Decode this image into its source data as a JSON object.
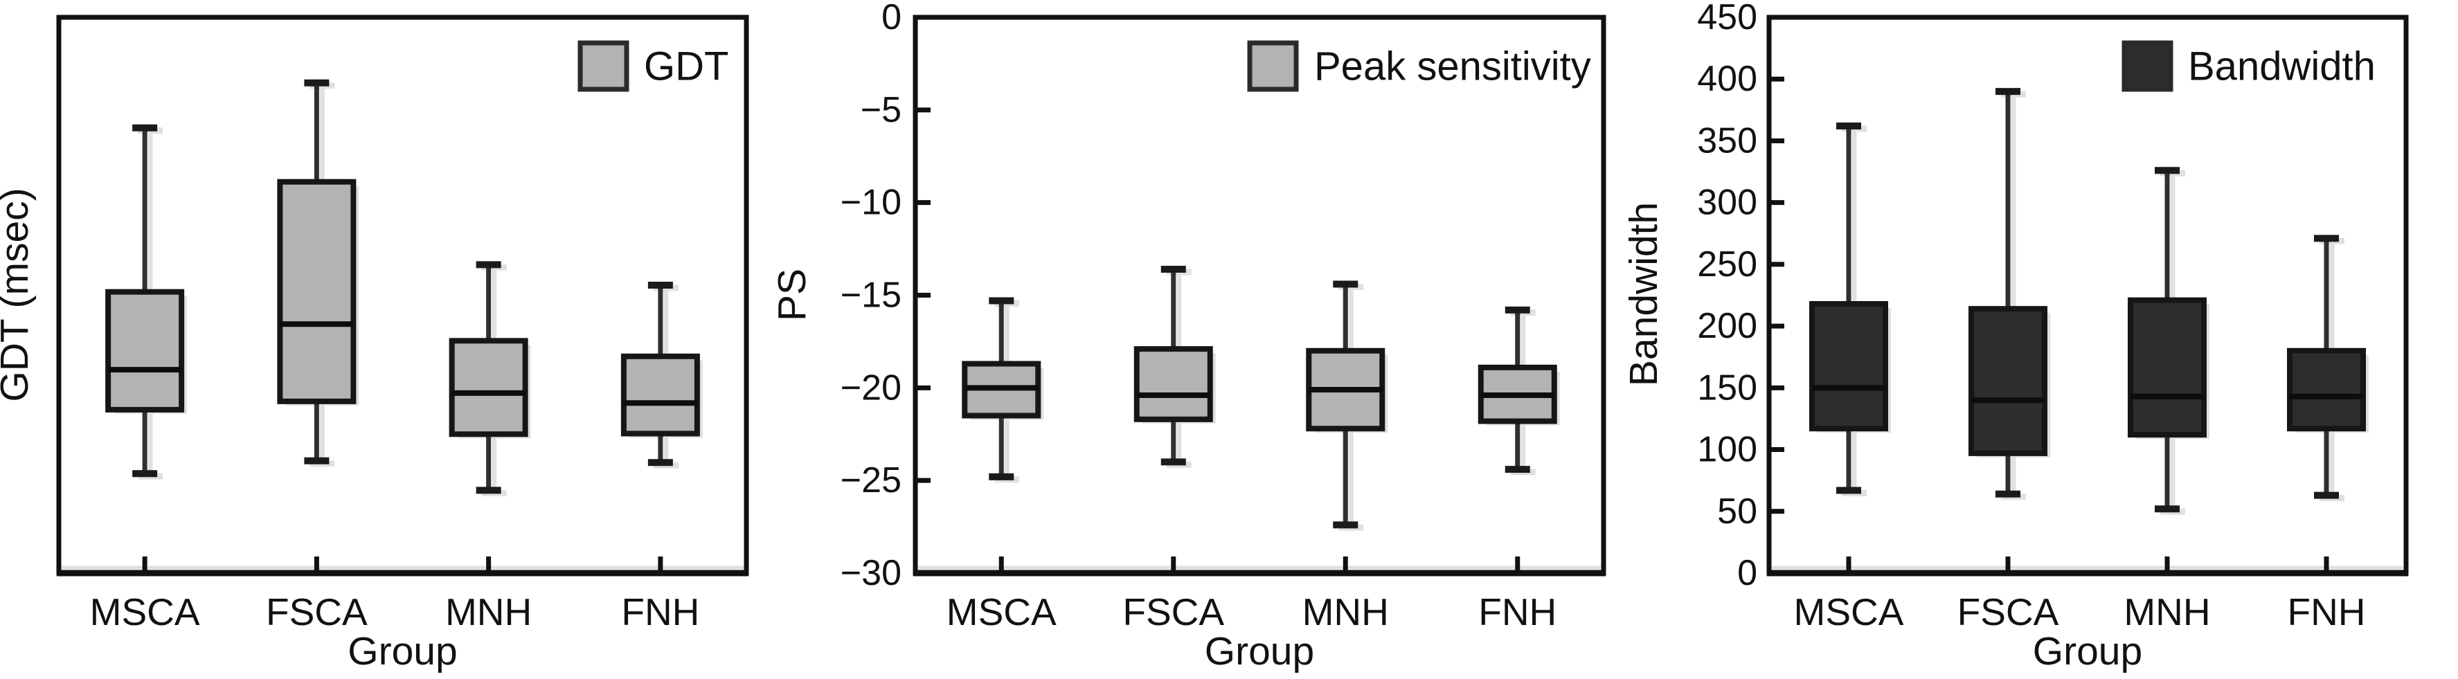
{
  "figure": {
    "background": "#ffffff",
    "text_color": "#111111",
    "colors": {
      "light_box_fill": "#b3b3b3",
      "dark_box_fill": "#2d2d2d",
      "box_stroke": "#161616",
      "median_color": "#0d0d0d",
      "whisker_color": "#2f2f2f",
      "cap_color": "#1b1b1b",
      "frame_color": "#111111",
      "shadow_color": "#e0e0e0"
    }
  },
  "chart_data": [
    {
      "type": "box",
      "panel": "left",
      "legend": "GDT",
      "legend_style": "light",
      "ylabel": "GDT (msec)",
      "xlabel": "Group",
      "categories": [
        "MSCA",
        "FSCA",
        "MNH",
        "FNH"
      ],
      "y_axis": {
        "tick_labels_visible": false,
        "tick_labels": [],
        "ticks": [],
        "ylim": [
          0,
          1
        ],
        "note": "y axis has no tick labels in the image; box statistics are stored as fractions of the plotted axis height (0 = axis bottom, 1 = axis top)"
      },
      "grid": false,
      "legend_position": "top-right",
      "series": [
        {
          "category": "MSCA",
          "min": 0.179,
          "q1": 0.294,
          "median": 0.366,
          "q3": 0.506,
          "max": 0.801
        },
        {
          "category": "FSCA",
          "min": 0.202,
          "q1": 0.309,
          "median": 0.448,
          "q3": 0.704,
          "max": 0.882
        },
        {
          "category": "MNH",
          "min": 0.149,
          "q1": 0.25,
          "median": 0.324,
          "q3": 0.418,
          "max": 0.555
        },
        {
          "category": "FNH",
          "min": 0.199,
          "q1": 0.251,
          "median": 0.306,
          "q3": 0.39,
          "max": 0.518
        }
      ]
    },
    {
      "type": "box",
      "panel": "middle",
      "legend": "Peak sensitivity",
      "legend_style": "light",
      "ylabel": "PS",
      "xlabel": "Group",
      "categories": [
        "MSCA",
        "FSCA",
        "MNH",
        "FNH"
      ],
      "y_axis": {
        "tick_labels_visible": true,
        "tick_labels": [
          "0",
          "−5",
          "−10",
          "−15",
          "−20",
          "−25",
          "−30"
        ],
        "ticks": [
          0,
          -5,
          -10,
          -15,
          -20,
          -25,
          -30
        ],
        "ylim": [
          -30,
          0
        ]
      },
      "grid": false,
      "legend_position": "top-right",
      "series": [
        {
          "category": "MSCA",
          "min": -24.8,
          "q1": -21.5,
          "median": -20.0,
          "q3": -18.7,
          "max": -15.3
        },
        {
          "category": "FSCA",
          "min": -24.0,
          "q1": -21.7,
          "median": -20.4,
          "q3": -17.9,
          "max": -13.6
        },
        {
          "category": "MNH",
          "min": -27.4,
          "q1": -22.2,
          "median": -20.1,
          "q3": -18.0,
          "max": -14.4
        },
        {
          "category": "FNH",
          "min": -24.4,
          "q1": -21.8,
          "median": -20.4,
          "q3": -18.9,
          "max": -15.8
        }
      ]
    },
    {
      "type": "box",
      "panel": "right",
      "legend": "Bandwidth",
      "legend_style": "dark",
      "ylabel": "Bandwidth",
      "xlabel": "Group",
      "categories": [
        "MSCA",
        "FSCA",
        "MNH",
        "FNH"
      ],
      "y_axis": {
        "tick_labels_visible": true,
        "tick_labels": [
          "450",
          "400",
          "350",
          "300",
          "250",
          "200",
          "150",
          "100",
          "50",
          "0"
        ],
        "ticks": [
          450,
          400,
          350,
          300,
          250,
          200,
          150,
          100,
          50,
          0
        ],
        "ylim": [
          0,
          450
        ]
      },
      "grid": false,
      "legend_position": "top-right",
      "series": [
        {
          "category": "MSCA",
          "min": 67,
          "q1": 117,
          "median": 150,
          "q3": 218,
          "max": 362
        },
        {
          "category": "FSCA",
          "min": 64,
          "q1": 97,
          "median": 140,
          "q3": 214,
          "max": 390
        },
        {
          "category": "MNH",
          "min": 52,
          "q1": 112,
          "median": 143,
          "q3": 221,
          "max": 326
        },
        {
          "category": "FNH",
          "min": 63,
          "q1": 117,
          "median": 143,
          "q3": 180,
          "max": 271
        }
      ]
    }
  ]
}
